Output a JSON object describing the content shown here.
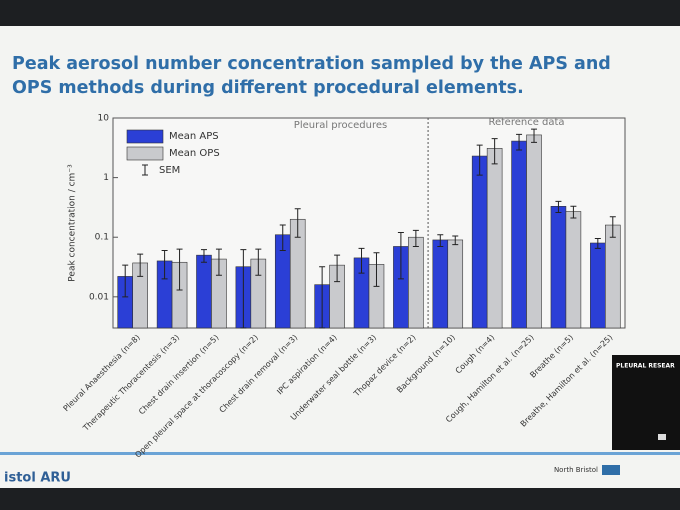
{
  "chart_data": {
    "type": "bar",
    "title": "Peak aerosol number concentration sampled by the APS and OPS methods during different procedural elements.",
    "ylabel": "Peak concentration / cm⁻³",
    "log_scale": true,
    "ylim": [
      0.003,
      10
    ],
    "yticks": [
      0.01,
      0.1,
      1,
      10
    ],
    "legend": "upper left",
    "legend_error_label": "SEM",
    "annotations": [
      "Pleural procedures",
      "Reference data"
    ],
    "categories": [
      "Pleural Anaesthesia (n=8)",
      "Therapeutic Thoracentesis (n=3)",
      "Chest drain insertion (n=5)",
      "Open pleural space at thoracoscopy (n=2)",
      "Chest drain removal (n=3)",
      "IPC aspiration (n=4)",
      "Underwater seal bottle (n=3)",
      "Thopaz device (n=2)",
      "Background (n=10)",
      "Cough (n=4)",
      "Cough, Hamilton et al. (n=25)",
      "Breathe (n=5)",
      "Breathe, Hamilton et al. (n=25)"
    ],
    "series": [
      {
        "name": "Mean APS",
        "color": "#2b3fd6",
        "values": [
          0.022,
          0.04,
          0.05,
          0.032,
          0.11,
          0.016,
          0.045,
          0.07,
          0.09,
          2.3,
          4.1,
          0.33,
          0.08
        ],
        "errors": [
          0.012,
          0.02,
          0.012,
          0.03,
          0.05,
          0.016,
          0.02,
          0.05,
          0.02,
          1.2,
          1.2,
          0.07,
          0.015
        ]
      },
      {
        "name": "Mean OPS",
        "color": "#c9cacd",
        "values": [
          0.037,
          0.038,
          0.043,
          0.043,
          0.2,
          0.034,
          0.035,
          0.1,
          0.09,
          3.1,
          5.2,
          0.27,
          0.16
        ],
        "errors": [
          0.015,
          0.025,
          0.02,
          0.02,
          0.1,
          0.016,
          0.02,
          0.03,
          0.015,
          1.4,
          1.3,
          0.06,
          0.06
        ]
      }
    ],
    "footer_left": "istol ARU",
    "footer_right": "North Bristol",
    "video_label": "PLEURAL RESEAR"
  }
}
